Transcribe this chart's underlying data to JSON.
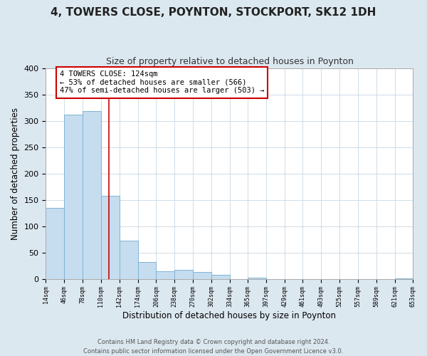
{
  "title": "4, TOWERS CLOSE, POYNTON, STOCKPORT, SK12 1DH",
  "subtitle": "Size of property relative to detached houses in Poynton",
  "xlabel": "Distribution of detached houses by size in Poynton",
  "ylabel": "Number of detached properties",
  "bar_edges": [
    14,
    46,
    78,
    110,
    142,
    174,
    206,
    238,
    270,
    302,
    334,
    365,
    397,
    429,
    461,
    493,
    525,
    557,
    589,
    621,
    653
  ],
  "bar_heights": [
    135,
    311,
    318,
    157,
    72,
    32,
    15,
    17,
    13,
    8,
    0,
    3,
    0,
    0,
    0,
    0,
    0,
    0,
    0,
    1
  ],
  "bar_color": "#c5ddef",
  "bar_edge_color": "#7fb3d3",
  "property_line_x": 124,
  "property_line_color": "#cc0000",
  "annotation_text": "4 TOWERS CLOSE: 124sqm\n← 53% of detached houses are smaller (566)\n47% of semi-detached houses are larger (503) →",
  "annotation_box_color": "#ffffff",
  "annotation_box_edge": "#cc0000",
  "ylim": [
    0,
    400
  ],
  "xlim": [
    14,
    653
  ],
  "tick_labels": [
    "14sqm",
    "46sqm",
    "78sqm",
    "110sqm",
    "142sqm",
    "174sqm",
    "206sqm",
    "238sqm",
    "270sqm",
    "302sqm",
    "334sqm",
    "365sqm",
    "397sqm",
    "429sqm",
    "461sqm",
    "493sqm",
    "525sqm",
    "557sqm",
    "589sqm",
    "621sqm",
    "653sqm"
  ],
  "footer_text": "Contains HM Land Registry data © Crown copyright and database right 2024.\nContains public sector information licensed under the Open Government Licence v3.0.",
  "background_color": "#dce8f0",
  "plot_background": "#ffffff",
  "grid_color": "#c8d8e4",
  "title_fontsize": 11,
  "subtitle_fontsize": 9
}
